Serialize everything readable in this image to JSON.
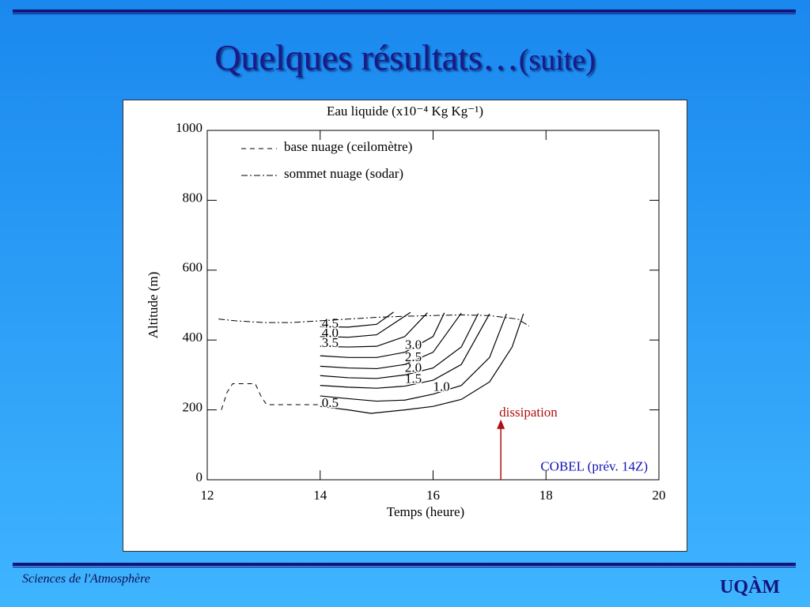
{
  "header": {
    "title": "Quelques résultats…",
    "title_suffix": "(suite)"
  },
  "footer": {
    "left": "Sciences de l'Atmosphère",
    "right": "UQÀM"
  },
  "chart_data": {
    "type": "contour",
    "title": "Eau liquide (x10⁻⁴ Kg Kg⁻¹)",
    "x_label": "Temps (heure)",
    "y_label": "Altitude (m)",
    "xlim": [
      12,
      20
    ],
    "xticks": [
      12,
      14,
      16,
      18,
      20
    ],
    "ylim": [
      0,
      1000
    ],
    "yticks": [
      0,
      200,
      400,
      600,
      800,
      1000
    ],
    "levels": [
      0.5,
      1.0,
      1.5,
      2.0,
      2.5,
      3.0,
      3.5,
      4.0,
      4.5
    ],
    "level_labels": [
      "0.5",
      "1.0",
      "1.5",
      "2.0",
      "2.5",
      "3.0",
      "3.5",
      "4.0",
      "4.5"
    ],
    "contour_color": "#000000",
    "contours": [
      {
        "x": [
          14,
          14.5,
          14.9,
          15.5,
          16,
          16.5,
          17,
          17.4,
          17.6
        ],
        "y": [
          210,
          200,
          190,
          200,
          210,
          230,
          280,
          380,
          475
        ]
      },
      {
        "x": [
          14,
          14.5,
          15,
          15.5,
          16,
          16.5,
          17,
          17.3
        ],
        "y": [
          240,
          232,
          225,
          228,
          245,
          270,
          350,
          475
        ]
      },
      {
        "x": [
          14,
          14.5,
          15,
          15.5,
          16,
          16.5,
          17
        ],
        "y": [
          270,
          265,
          262,
          268,
          285,
          330,
          475
        ]
      },
      {
        "x": [
          14,
          14.5,
          15,
          15.5,
          16,
          16.5,
          16.8
        ],
        "y": [
          298,
          292,
          290,
          300,
          320,
          380,
          476
        ]
      },
      {
        "x": [
          14,
          14.5,
          15,
          15.5,
          16,
          16.5
        ],
        "y": [
          325,
          320,
          318,
          330,
          365,
          477
        ]
      },
      {
        "x": [
          14,
          14.5,
          15,
          15.5,
          16,
          16.2
        ],
        "y": [
          355,
          350,
          350,
          365,
          410,
          478
        ]
      },
      {
        "x": [
          14,
          14.5,
          15,
          15.5,
          15.9
        ],
        "y": [
          382,
          380,
          382,
          410,
          478
        ]
      },
      {
        "x": [
          14,
          14.5,
          15,
          15.6
        ],
        "y": [
          410,
          408,
          415,
          479
        ]
      },
      {
        "x": [
          14,
          14.5,
          15,
          15.3
        ],
        "y": [
          438,
          437,
          445,
          480
        ]
      }
    ],
    "series": [
      {
        "name": "base nuage (ceilomètre)",
        "dash": "6,5",
        "x": [
          12.25,
          12.35,
          12.45,
          12.85,
          12.95,
          13.05,
          14
        ],
        "y": [
          200,
          250,
          275,
          275,
          240,
          215,
          215
        ]
      },
      {
        "name": "sommet nuage (sodar)",
        "dash": "8,3,2,3",
        "x": [
          12.2,
          12.5,
          13,
          13.5,
          14,
          14.5,
          15,
          15.5,
          16,
          16.5,
          17,
          17.5,
          17.7
        ],
        "y": [
          460,
          455,
          450,
          450,
          455,
          460,
          465,
          468,
          470,
          472,
          470,
          460,
          440
        ]
      }
    ],
    "annotation": {
      "text": "dissipation",
      "x": 17.2,
      "color": "#b01010"
    },
    "model_label": "COBEL (prév. 14Z)"
  }
}
